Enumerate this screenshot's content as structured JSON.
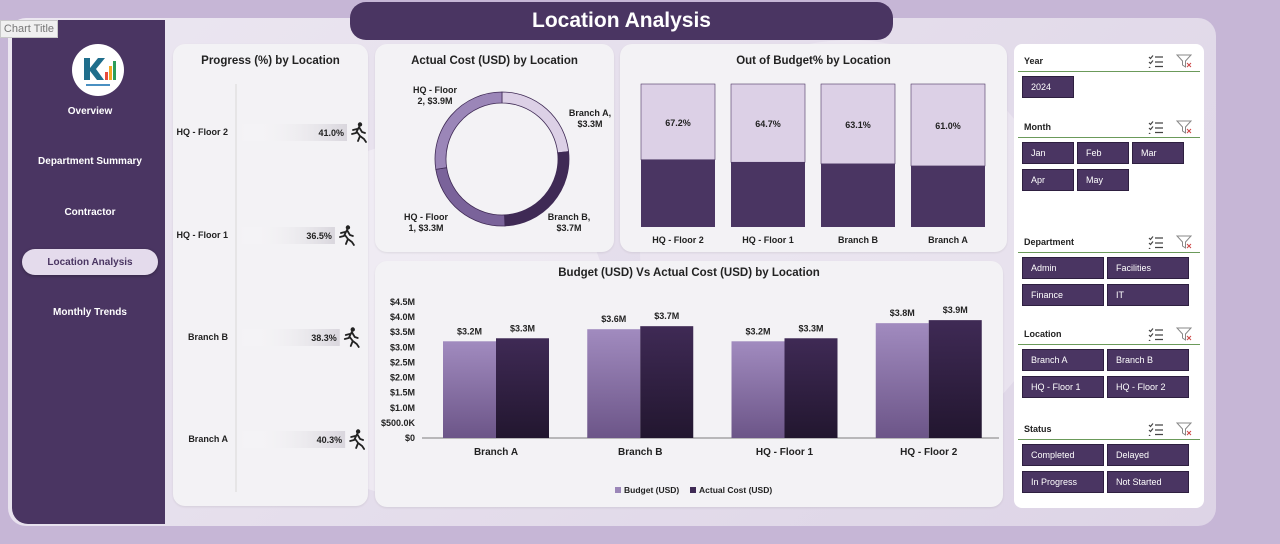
{
  "chart_title_tag": "Chart Title",
  "page_title": "Location Analysis",
  "nav": [
    {
      "label": "Overview"
    },
    {
      "label": "Department Summary"
    },
    {
      "label": "Contractor"
    },
    {
      "label": "Location Analysis",
      "active": true
    },
    {
      "label": "Monthly Trends"
    }
  ],
  "colors": {
    "dark": "#3f2a55",
    "light": "#9b86b8",
    "pale": "#dcd0e6"
  },
  "chart_data": [
    {
      "type": "bar",
      "orientation": "horizontal",
      "title": "Progress (%) by Location",
      "categories": [
        "HQ - Floor 2",
        "HQ - Floor 1",
        "Branch B",
        "Branch A"
      ],
      "values": [
        41.0,
        36.5,
        38.3,
        40.3
      ],
      "labels": [
        "41.0%",
        "36.5%",
        "38.3%",
        "40.3%"
      ],
      "marker_icon": "runner-icon"
    },
    {
      "type": "pie",
      "donut": true,
      "title": "Actual Cost (USD) by Location",
      "slices": [
        {
          "label": "Branch A, $3.3M",
          "value": 3.3,
          "color": "#dcd0e6"
        },
        {
          "label": "Branch B, $3.7M",
          "value": 3.7,
          "color": "#3f2a55"
        },
        {
          "label": "HQ - Floor 1, $3.3M",
          "value": 3.3,
          "color": "#7a639a"
        },
        {
          "label": "HQ - Floor 2, $3.9M",
          "value": 3.9,
          "color": "#9b86b8"
        }
      ]
    },
    {
      "type": "bar",
      "stacked": true,
      "title": "Out of Budget% by Location",
      "categories": [
        "HQ - Floor 2",
        "HQ - Floor 1",
        "Branch B",
        "Branch A"
      ],
      "values": [
        67.2,
        64.7,
        63.1,
        61.0
      ],
      "labels": [
        "67.2%",
        "64.7%",
        "63.1%",
        "61.0%"
      ]
    },
    {
      "type": "bar",
      "title": "Budget (USD) Vs Actual Cost (USD) by Location",
      "categories": [
        "Branch A",
        "Branch B",
        "HQ - Floor 1",
        "HQ - Floor 2"
      ],
      "series": [
        {
          "name": "Budget (USD)",
          "values": [
            3.2,
            3.6,
            3.2,
            3.8
          ],
          "labels": [
            "$3.2M",
            "$3.6M",
            "$3.2M",
            "$3.8M"
          ]
        },
        {
          "name": "Actual Cost (USD)",
          "values": [
            3.3,
            3.7,
            3.3,
            3.9
          ],
          "labels": [
            "$3.3M",
            "$3.7M",
            "$3.3M",
            "$3.9M"
          ]
        }
      ],
      "yticks": [
        "$0",
        "$500.0K",
        "$1.0M",
        "$1.5M",
        "$2.0M",
        "$2.5M",
        "$3.0M",
        "$3.5M",
        "$4.0M",
        "$4.5M"
      ],
      "ylim": [
        0,
        4.5
      ],
      "legend": "bottom"
    }
  ],
  "slicers": {
    "year": {
      "title": "Year",
      "items": [
        "2024"
      ]
    },
    "month": {
      "title": "Month",
      "items": [
        "Jan",
        "Feb",
        "Mar",
        "Apr",
        "May"
      ]
    },
    "department": {
      "title": "Department",
      "items": [
        "Admin",
        "Facilities",
        "Finance",
        "IT"
      ]
    },
    "location": {
      "title": "Location",
      "items": [
        "Branch A",
        "Branch B",
        "HQ - Floor 1",
        "HQ - Floor 2"
      ]
    },
    "status": {
      "title": "Status",
      "items": [
        "Completed",
        "Delayed",
        "In Progress",
        "Not Started"
      ]
    }
  }
}
